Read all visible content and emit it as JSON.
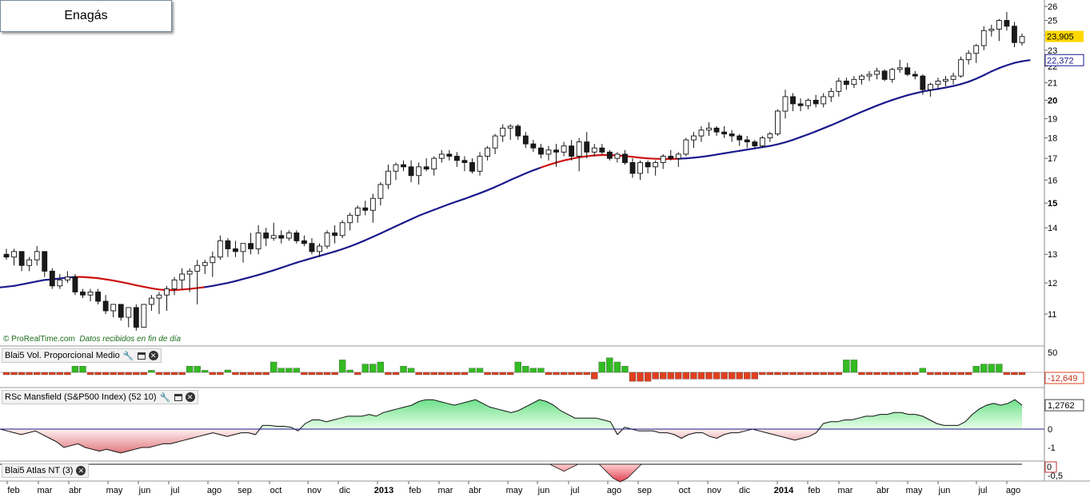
{
  "title": "Enagás",
  "credit": {
    "brand": "© ProRealTime.com",
    "note": "Datos recibidos en fin de día"
  },
  "panels": {
    "volume": {
      "label": "Blai5 Vol. Proporcional Medio",
      "top_tick": "50",
      "last_value": "-12,649"
    },
    "rsc": {
      "label": "RSc Mansfield (S&P500 Index) (52 10)",
      "last_value": "1,2762",
      "ticks": [
        "0",
        "-1"
      ]
    },
    "atlas": {
      "label": "Blai5 Atlas NT (3)",
      "ticks": [
        "0",
        "-0,5"
      ]
    }
  },
  "colors": {
    "ma_blue": "#1a1a8c",
    "ma_red": "#cc1111",
    "bull_fill": "#ffffff",
    "bear_fill": "#1a1a1a",
    "vol_pos": "#33bb22",
    "vol_neg": "#e04020",
    "rsc_pos": "#7de89a",
    "rsc_neg": "#e89a9a",
    "last_price_bg": "#ffd700"
  },
  "chart_data": {
    "type": "candlestick",
    "period": "weekly",
    "price_axis": {
      "ticks": [
        11,
        12,
        13,
        14,
        15,
        16,
        17,
        18,
        19,
        20,
        21,
        22,
        23,
        24,
        25,
        26
      ],
      "scale": "log"
    },
    "x_axis_labels": [
      "feb",
      "mar",
      "abr",
      "may",
      "jun",
      "jul",
      "ago",
      "sep",
      "oct",
      "nov",
      "dic",
      "2013",
      "feb",
      "mar",
      "abr",
      "may",
      "jun",
      "jul",
      "ago",
      "sep",
      "oct",
      "nov",
      "dic",
      "2014",
      "feb",
      "mar",
      "abr",
      "may",
      "jun",
      "jul",
      "ago"
    ],
    "last_price": "23,905",
    "ma_last": "22,372",
    "candles": [
      [
        13.0,
        13.2,
        12.8,
        12.9
      ],
      [
        12.9,
        13.2,
        12.6,
        13.1
      ],
      [
        13.1,
        13.1,
        12.4,
        12.6
      ],
      [
        12.6,
        12.9,
        12.4,
        12.8
      ],
      [
        12.8,
        13.3,
        12.6,
        13.1
      ],
      [
        13.1,
        13.1,
        12.2,
        12.4
      ],
      [
        12.4,
        12.5,
        11.8,
        11.9
      ],
      [
        11.9,
        12.3,
        11.8,
        12.1
      ],
      [
        12.1,
        12.4,
        12.0,
        12.2
      ],
      [
        12.2,
        12.3,
        11.6,
        11.7
      ],
      [
        11.7,
        11.8,
        11.5,
        11.6
      ],
      [
        11.6,
        11.8,
        11.4,
        11.7
      ],
      [
        11.7,
        11.8,
        11.3,
        11.4
      ],
      [
        11.4,
        11.6,
        11.0,
        11.1
      ],
      [
        11.1,
        11.3,
        10.9,
        11.3
      ],
      [
        11.3,
        11.3,
        10.8,
        10.9
      ],
      [
        10.9,
        11.2,
        10.6,
        11.2
      ],
      [
        11.2,
        11.3,
        10.5,
        10.6
      ],
      [
        10.6,
        11.3,
        10.6,
        11.3
      ],
      [
        11.3,
        11.6,
        11.1,
        11.5
      ],
      [
        11.5,
        11.7,
        11.0,
        11.6
      ],
      [
        11.6,
        11.9,
        11.1,
        11.8
      ],
      [
        11.8,
        12.2,
        11.6,
        12.1
      ],
      [
        12.1,
        12.5,
        11.8,
        12.3
      ],
      [
        12.3,
        12.5,
        11.7,
        12.4
      ],
      [
        12.4,
        12.8,
        11.3,
        12.6
      ],
      [
        12.6,
        12.8,
        12.3,
        12.7
      ],
      [
        12.7,
        13.1,
        12.2,
        12.9
      ],
      [
        12.9,
        13.7,
        12.8,
        13.5
      ],
      [
        13.5,
        13.6,
        12.9,
        13.2
      ],
      [
        13.2,
        13.5,
        12.9,
        13.1
      ],
      [
        13.1,
        13.3,
        12.7,
        13.4
      ],
      [
        13.4,
        13.8,
        13.0,
        13.2
      ],
      [
        13.2,
        14.1,
        13.0,
        13.8
      ],
      [
        13.8,
        14.0,
        13.3,
        13.6
      ],
      [
        13.6,
        14.2,
        13.5,
        13.7
      ],
      [
        13.7,
        13.9,
        13.4,
        13.6
      ],
      [
        13.6,
        13.9,
        13.5,
        13.8
      ],
      [
        13.8,
        13.9,
        13.4,
        13.5
      ],
      [
        13.5,
        13.7,
        13.3,
        13.4
      ],
      [
        13.4,
        13.6,
        13.0,
        13.1
      ],
      [
        13.1,
        13.4,
        12.9,
        13.3
      ],
      [
        13.3,
        13.9,
        13.2,
        13.8
      ],
      [
        13.8,
        14.1,
        13.4,
        13.7
      ],
      [
        13.7,
        14.3,
        13.6,
        14.2
      ],
      [
        14.2,
        14.6,
        13.9,
        14.5
      ],
      [
        14.5,
        14.9,
        14.2,
        14.8
      ],
      [
        14.8,
        15.1,
        14.5,
        14.7
      ],
      [
        14.7,
        15.4,
        14.2,
        15.2
      ],
      [
        15.2,
        15.9,
        14.9,
        15.8
      ],
      [
        15.8,
        16.7,
        15.6,
        16.4
      ],
      [
        16.4,
        16.8,
        16.0,
        16.7
      ],
      [
        16.7,
        16.9,
        16.4,
        16.6
      ],
      [
        16.6,
        16.9,
        15.9,
        16.2
      ],
      [
        16.2,
        16.8,
        15.8,
        16.6
      ],
      [
        16.6,
        17.0,
        16.4,
        16.5
      ],
      [
        16.5,
        17.1,
        16.2,
        17.0
      ],
      [
        17.0,
        17.4,
        16.8,
        17.2
      ],
      [
        17.2,
        17.4,
        16.9,
        17.1
      ],
      [
        17.1,
        17.3,
        16.6,
        16.9
      ],
      [
        16.9,
        17.1,
        16.4,
        16.8
      ],
      [
        16.8,
        17.0,
        16.3,
        16.4
      ],
      [
        16.4,
        17.3,
        16.2,
        17.1
      ],
      [
        17.1,
        17.6,
        16.9,
        17.5
      ],
      [
        17.5,
        18.2,
        17.2,
        18.1
      ],
      [
        18.1,
        18.7,
        17.8,
        18.5
      ],
      [
        18.5,
        18.7,
        17.9,
        18.6
      ],
      [
        18.6,
        18.7,
        17.9,
        18.1
      ],
      [
        18.1,
        18.3,
        17.5,
        17.7
      ],
      [
        17.7,
        17.9,
        17.3,
        17.5
      ],
      [
        17.5,
        17.7,
        17.0,
        17.2
      ],
      [
        17.2,
        17.6,
        16.9,
        17.4
      ],
      [
        17.4,
        17.7,
        16.6,
        17.3
      ],
      [
        17.3,
        17.8,
        17.1,
        17.6
      ],
      [
        17.6,
        17.9,
        16.9,
        17.1
      ],
      [
        17.1,
        18.0,
        16.4,
        17.8
      ],
      [
        17.8,
        18.3,
        17.0,
        17.3
      ],
      [
        17.3,
        17.7,
        17.1,
        17.5
      ],
      [
        17.5,
        17.7,
        17.2,
        17.3
      ],
      [
        17.3,
        17.4,
        16.9,
        17.0
      ],
      [
        17.0,
        17.3,
        16.8,
        17.2
      ],
      [
        17.2,
        17.4,
        16.7,
        16.8
      ],
      [
        16.8,
        17.0,
        16.1,
        16.3
      ],
      [
        16.3,
        16.9,
        16.0,
        16.8
      ],
      [
        16.8,
        16.9,
        16.3,
        16.6
      ],
      [
        16.6,
        16.9,
        16.2,
        16.8
      ],
      [
        16.8,
        17.2,
        16.5,
        17.1
      ],
      [
        17.1,
        17.4,
        16.9,
        17.0
      ],
      [
        17.0,
        17.3,
        16.6,
        17.2
      ],
      [
        17.2,
        18.0,
        17.1,
        17.9
      ],
      [
        17.9,
        18.3,
        17.5,
        18.1
      ],
      [
        18.1,
        18.6,
        17.8,
        18.4
      ],
      [
        18.4,
        18.8,
        18.1,
        18.5
      ],
      [
        18.5,
        18.6,
        18.1,
        18.3
      ],
      [
        18.3,
        18.6,
        18.0,
        18.2
      ],
      [
        18.2,
        18.4,
        17.8,
        18.1
      ],
      [
        18.1,
        18.2,
        17.6,
        17.9
      ],
      [
        17.9,
        18.1,
        17.5,
        17.8
      ],
      [
        17.8,
        17.9,
        17.5,
        17.6
      ],
      [
        17.6,
        18.1,
        17.5,
        18.0
      ],
      [
        18.0,
        18.3,
        17.8,
        18.2
      ],
      [
        18.2,
        19.5,
        18.1,
        19.4
      ],
      [
        19.4,
        20.6,
        19.0,
        20.2
      ],
      [
        20.2,
        20.4,
        19.4,
        19.8
      ],
      [
        19.8,
        20.1,
        19.4,
        19.7
      ],
      [
        19.7,
        20.1,
        19.5,
        20.0
      ],
      [
        20.0,
        20.3,
        19.6,
        19.8
      ],
      [
        19.8,
        20.4,
        19.6,
        20.2
      ],
      [
        20.2,
        20.7,
        19.9,
        20.5
      ],
      [
        20.5,
        21.3,
        20.2,
        21.1
      ],
      [
        21.1,
        21.3,
        20.6,
        20.9
      ],
      [
        20.9,
        21.4,
        20.7,
        21.2
      ],
      [
        21.2,
        21.5,
        20.9,
        21.4
      ],
      [
        21.4,
        21.7,
        21.1,
        21.5
      ],
      [
        21.5,
        21.9,
        21.2,
        21.7
      ],
      [
        21.7,
        21.8,
        21.1,
        21.2
      ],
      [
        21.2,
        21.9,
        21.0,
        21.8
      ],
      [
        21.8,
        22.4,
        21.6,
        21.9
      ],
      [
        21.9,
        22.2,
        21.4,
        21.5
      ],
      [
        21.5,
        21.7,
        21.2,
        21.4
      ],
      [
        21.4,
        21.5,
        20.3,
        20.6
      ],
      [
        20.6,
        21.0,
        20.2,
        20.9
      ],
      [
        20.9,
        21.3,
        20.6,
        21.1
      ],
      [
        21.1,
        21.4,
        20.8,
        21.2
      ],
      [
        21.2,
        21.6,
        20.9,
        21.4
      ],
      [
        21.4,
        22.6,
        21.3,
        22.4
      ],
      [
        22.4,
        23.0,
        22.1,
        22.8
      ],
      [
        22.8,
        23.4,
        22.2,
        23.3
      ],
      [
        23.3,
        24.6,
        23.0,
        24.3
      ],
      [
        24.3,
        24.7,
        23.9,
        24.4
      ],
      [
        24.4,
        25.1,
        23.6,
        25.0
      ],
      [
        25.0,
        25.6,
        24.3,
        24.6
      ],
      [
        24.6,
        24.9,
        23.2,
        23.5
      ],
      [
        23.5,
        24.1,
        23.3,
        23.9
      ]
    ],
    "moving_average": {
      "start_index": 0,
      "red_segments": [
        [
          9,
          26
        ],
        [
          70,
          88
        ]
      ],
      "values": [
        11.85,
        11.9,
        11.95,
        12.0,
        12.05,
        12.1,
        12.12,
        12.15,
        12.18,
        12.2,
        12.2,
        12.18,
        12.16,
        12.12,
        12.08,
        12.03,
        11.98,
        11.92,
        11.87,
        11.82,
        11.78,
        11.76,
        11.76,
        11.78,
        11.8,
        11.83,
        11.86,
        11.9,
        11.95,
        12.0,
        12.06,
        12.13,
        12.2,
        12.27,
        12.35,
        12.43,
        12.52,
        12.61,
        12.7,
        12.78,
        12.86,
        12.94,
        13.02,
        13.1,
        13.19,
        13.29,
        13.4,
        13.52,
        13.65,
        13.78,
        13.92,
        14.06,
        14.2,
        14.34,
        14.48,
        14.6,
        14.72,
        14.84,
        14.96,
        15.07,
        15.18,
        15.3,
        15.42,
        15.55,
        15.69,
        15.84,
        16.0,
        16.15,
        16.3,
        16.44,
        16.57,
        16.69,
        16.8,
        16.9,
        16.98,
        17.05,
        17.1,
        17.14,
        17.16,
        17.16,
        17.14,
        17.11,
        17.07,
        17.03,
        17.0,
        16.98,
        16.97,
        16.97,
        16.98,
        17.0,
        17.03,
        17.07,
        17.12,
        17.18,
        17.24,
        17.3,
        17.36,
        17.42,
        17.48,
        17.54,
        17.6,
        17.68,
        17.78,
        17.9,
        18.04,
        18.18,
        18.33,
        18.49,
        18.65,
        18.82,
        19.0,
        19.18,
        19.36,
        19.53,
        19.7,
        19.86,
        20.01,
        20.15,
        20.28,
        20.39,
        20.49,
        20.57,
        20.64,
        20.72,
        20.81,
        20.92,
        21.06,
        21.24,
        21.45,
        21.68,
        21.88,
        22.05,
        22.2,
        22.3,
        22.37
      ]
    },
    "volume": [
      -1,
      -2,
      -1,
      -1,
      -1,
      -2,
      -1,
      -1,
      -1,
      -1,
      -2,
      -1,
      -1,
      -1,
      -1,
      -1,
      -2,
      -1,
      -1,
      -1,
      -1,
      -1,
      -1,
      -1,
      -1,
      -1,
      -1,
      -1,
      -1,
      4,
      -1,
      -2,
      -1,
      -1,
      -1,
      -1,
      -2,
      -1,
      -1,
      -1,
      -2,
      -1,
      -2,
      -1,
      -1,
      2,
      -1,
      -1,
      -2,
      -1,
      -1,
      -1,
      -1,
      -1,
      -2,
      -1,
      -1,
      -1,
      -1,
      -1,
      -1,
      -1,
      -2,
      -1,
      -1,
      -1,
      -1,
      -1,
      -1,
      -1,
      -1,
      -1,
      -2,
      -1,
      -1,
      -1,
      -1,
      -1,
      -1,
      -1,
      -1,
      -1,
      -1,
      -1,
      -1,
      -1,
      -1,
      -1,
      -1,
      -1,
      -1,
      -1,
      -1,
      -1,
      -1,
      -1,
      -1,
      -1,
      -1,
      -1,
      -1,
      -1,
      -1,
      -1,
      -1,
      -1,
      -1,
      -1,
      -1,
      -1,
      -1,
      -1,
      -1,
      -1,
      -1,
      -1,
      -1,
      -1,
      -1,
      -1,
      -1,
      -1,
      -1,
      -1,
      -1,
      -1,
      -1,
      -1,
      -1,
      -1,
      -1,
      -1,
      -1,
      -1,
      -1,
      -1,
      -1,
      -1
    ],
    "rsc": [
      0.0,
      -0.1,
      -0.2,
      -0.3,
      -0.2,
      -0.1,
      -0.3,
      -0.5,
      -0.7,
      -1.0,
      -0.9,
      -0.8,
      -1.0,
      -1.1,
      -1.2,
      -1.1,
      -1.2,
      -1.3,
      -1.2,
      -1.1,
      -1.0,
      -1.0,
      -0.9,
      -0.8,
      -0.8,
      -0.7,
      -0.6,
      -0.5,
      -0.4,
      -0.3,
      -0.2,
      -0.3,
      -0.4,
      -0.3,
      -0.2,
      -0.2,
      -0.3,
      0.2,
      0.2,
      0.15,
      0.15,
      0.1,
      -0.1,
      0.3,
      0.5,
      0.5,
      0.4,
      0.5,
      0.6,
      0.7,
      0.7,
      0.7,
      0.8,
      0.7,
      0.9,
      1.0,
      1.1,
      1.2,
      1.3,
      1.5,
      1.6,
      1.6,
      1.5,
      1.4,
      1.3,
      1.4,
      1.5,
      1.6,
      1.4,
      1.2,
      1.1,
      1.0,
      0.9,
      1.0,
      1.2,
      1.4,
      1.6,
      1.5,
      1.3,
      1.0,
      0.8,
      0.6,
      0.6,
      0.6,
      0.6,
      0.5,
      0.4,
      -0.3,
      0.1,
      0.0,
      -0.1,
      -0.1,
      -0.1,
      -0.2,
      -0.2,
      -0.3,
      -0.5,
      -0.3,
      -0.2,
      -0.2,
      -0.4,
      -0.5,
      -0.3,
      -0.2,
      -0.2,
      -0.1,
      0.0,
      -0.1,
      -0.2,
      -0.3,
      -0.4,
      -0.5,
      -0.6,
      -0.5,
      -0.4,
      -0.2,
      0.3,
      0.4,
      0.4,
      0.5,
      0.5,
      0.6,
      0.7,
      0.7,
      0.8,
      0.8,
      0.9,
      0.9,
      0.8,
      0.8,
      0.7,
      0.5,
      0.3,
      0.2,
      0.2,
      0.2,
      0.4,
      0.8,
      1.1,
      1.3,
      1.4,
      1.3,
      1.4,
      1.6,
      1.3
    ],
    "atlas": [
      0,
      0,
      0,
      0,
      0,
      0,
      0,
      0,
      0,
      0,
      0,
      0,
      0,
      0,
      0,
      0,
      0,
      0,
      0,
      0,
      0,
      0,
      0,
      0,
      0,
      0,
      0,
      0,
      0,
      0,
      0,
      0,
      0,
      0,
      0,
      0,
      0,
      0,
      0,
      0,
      0,
      0,
      0,
      0,
      0,
      0,
      0,
      0,
      0,
      0,
      0,
      0,
      0,
      0,
      0,
      0,
      0,
      0,
      0,
      0,
      0,
      0,
      0,
      0,
      0,
      0,
      0,
      0,
      0,
      0,
      0,
      0,
      0,
      0,
      0,
      0,
      0,
      0,
      0,
      -0.1,
      -0.2,
      -0.1,
      0,
      0,
      0,
      0,
      -0.2,
      -0.4,
      -0.5,
      -0.4,
      -0.2,
      0,
      0,
      0,
      0,
      0,
      0,
      0,
      0,
      0,
      0,
      0,
      0,
      0,
      0,
      0,
      0,
      0,
      0,
      0,
      0,
      0,
      0,
      0,
      0,
      0,
      0,
      0,
      0,
      0,
      0,
      0,
      0,
      0,
      0,
      0,
      0,
      0,
      0,
      0,
      0,
      0,
      0,
      0,
      0,
      0,
      0,
      0,
      0,
      0,
      0,
      0,
      0,
      0,
      0,
      0
    ]
  }
}
